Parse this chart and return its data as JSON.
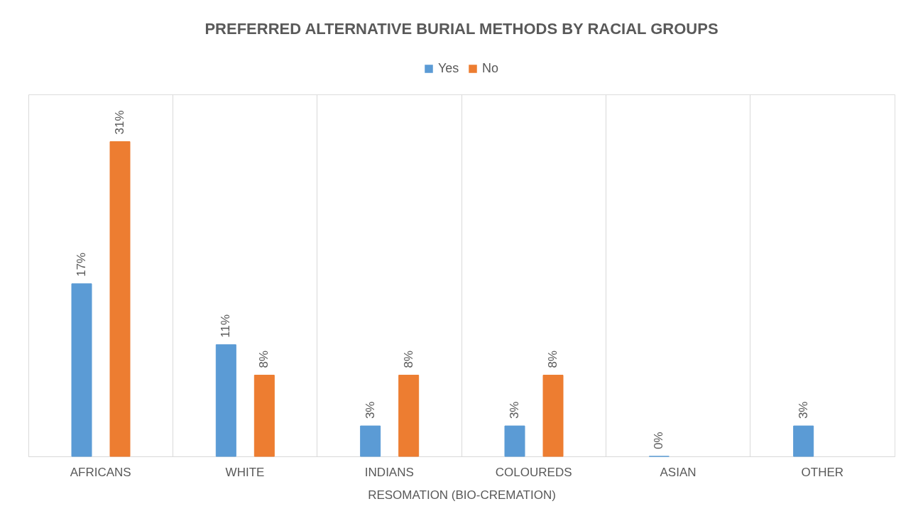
{
  "chart_data": {
    "type": "bar",
    "title": "PREFERRED ALTERNATIVE BURIAL METHODS BY RACIAL GROUPS",
    "xlabel": "RESOMATION (BIO-CREMATION)",
    "categories": [
      "AFRICANS",
      "WHITE",
      "INDIANS",
      "COLOUREDS",
      "ASIAN",
      "OTHER"
    ],
    "series": [
      {
        "name": "Yes",
        "color": "#5b9bd5",
        "values": [
          17,
          11,
          3,
          3,
          0,
          3
        ],
        "value_labels": [
          "17%",
          "11%",
          "3%",
          "3%",
          "0%",
          "3%"
        ]
      },
      {
        "name": "No",
        "color": "#ed7d31",
        "values": [
          31,
          8,
          8,
          8,
          null,
          null
        ],
        "value_labels": [
          "31%",
          "8%",
          "8%",
          "8%",
          null,
          null
        ]
      }
    ],
    "legend": "top",
    "grid": "x"
  }
}
